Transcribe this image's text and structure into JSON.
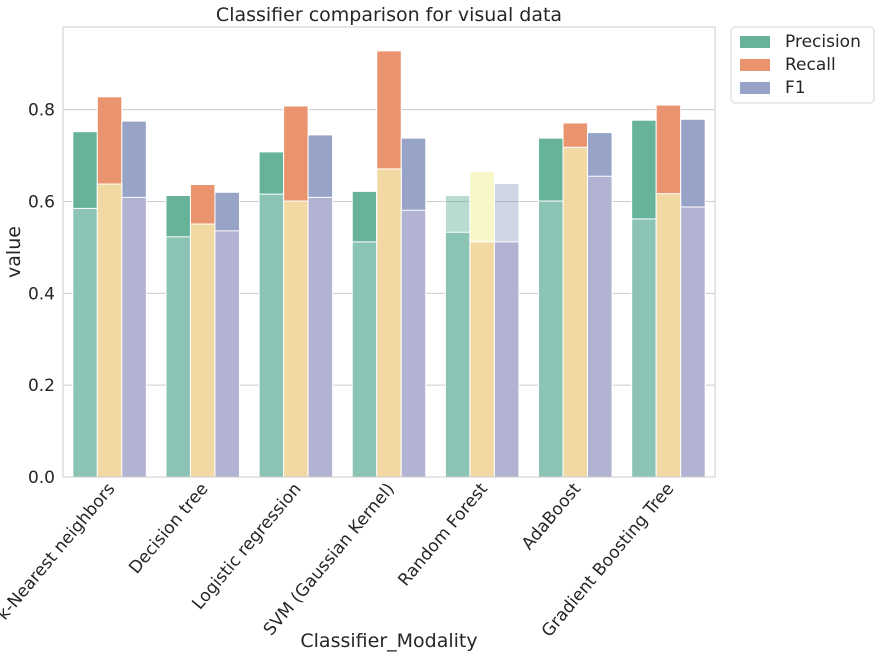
{
  "chart_data": {
    "type": "bar",
    "title": "Classifier comparison for visual data",
    "xlabel": "Classifier_Modality",
    "ylabel": "value",
    "ylim": [
      0,
      0.98
    ],
    "yticks": [
      "0.0",
      "0.2",
      "0.4",
      "0.6",
      "0.8"
    ],
    "grid": true,
    "legend_position": "outside-top-right",
    "categories": [
      "k-Nearest neighbors",
      "Decision tree",
      "Logistic regression",
      "SVM (Gaussian Kernel)",
      "Random Forest",
      "AdaBoost",
      "Gradient Boosting Tree"
    ],
    "series": [
      {
        "name": "Precision",
        "color": "#66b399",
        "values": [
          0.752,
          0.613,
          0.708,
          0.622,
          0.613,
          0.738,
          0.777
        ]
      },
      {
        "name": "Recall",
        "color": "#e9946f",
        "values": [
          0.828,
          0.637,
          0.808,
          0.928,
          0.665,
          0.771,
          0.81
        ]
      },
      {
        "name": "F1",
        "color": "#97a3c7",
        "values": [
          0.775,
          0.62,
          0.745,
          0.738,
          0.639,
          0.75,
          0.779
        ]
      }
    ],
    "overlay_series": [
      {
        "color": "#8bc4b5",
        "values": [
          0.585,
          0.523,
          0.616,
          0.512,
          0.533,
          0.601,
          0.562
        ]
      },
      {
        "color": "#f2d9a3",
        "values": [
          0.638,
          0.551,
          0.601,
          0.671,
          0.512,
          0.718,
          0.617
        ]
      },
      {
        "color": "#b2b2d3",
        "values": [
          0.609,
          0.536,
          0.609,
          0.581,
          0.512,
          0.655,
          0.588
        ]
      }
    ]
  }
}
